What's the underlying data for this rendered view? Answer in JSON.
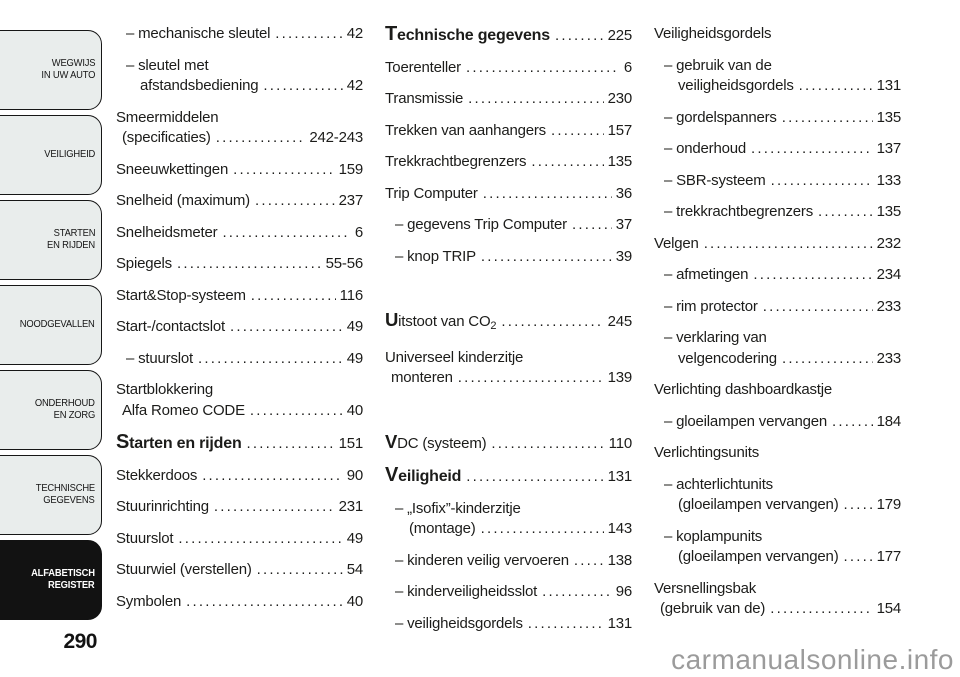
{
  "page": {
    "number": "290",
    "watermark": "carmanualsonline.info"
  },
  "colors": {
    "tab_background": "#e9edec",
    "tab_active_background": "#121212",
    "tab_active_text": "#ffffff",
    "text": "#1c1c1a",
    "watermark": "#9b9b9b"
  },
  "sidebar": {
    "tabs": [
      {
        "id": "wegwijs-in-uw-auto",
        "lines": [
          "WEGWIJS",
          "IN UW AUTO"
        ],
        "active": false
      },
      {
        "id": "veiligheid",
        "lines": [
          "VEILIGHEID"
        ],
        "active": false
      },
      {
        "id": "starten-en-rijden",
        "lines": [
          "STARTEN",
          "EN RIJDEN"
        ],
        "active": false
      },
      {
        "id": "noodgevallen",
        "lines": [
          "NOODGEVALLEN"
        ],
        "active": false
      },
      {
        "id": "onderhoud-en-zorg",
        "lines": [
          "ONDERHOUD",
          "EN ZORG"
        ],
        "active": false
      },
      {
        "id": "technische-gegevens",
        "lines": [
          "TECHNISCHE",
          "GEGEVENS"
        ],
        "active": false
      },
      {
        "id": "alfabetisch-register",
        "lines": [
          "ALFABETISCH",
          "REGISTER"
        ],
        "active": true
      }
    ]
  },
  "index": {
    "columns": [
      {
        "entries": [
          {
            "lines": [
              {
                "text": "– mechanische sleutel",
                "indent": 2,
                "page": "42"
              }
            ]
          },
          {
            "lines": [
              {
                "text": "– sleutel met",
                "indent": 2
              },
              {
                "text": "afstandsbediening",
                "indent": 3,
                "page": "42"
              }
            ]
          },
          {
            "lines": [
              {
                "text": "Smeermiddelen",
                "indent": 0
              },
              {
                "text": "(specificaties)",
                "indent": 1,
                "page": "242-243"
              }
            ]
          },
          {
            "lines": [
              {
                "text": "Sneeuwkettingen",
                "indent": 0,
                "page": "159"
              }
            ]
          },
          {
            "lines": [
              {
                "text": "Snelheid (maximum)",
                "indent": 0,
                "page": "237"
              }
            ]
          },
          {
            "lines": [
              {
                "text": "Snelheidsmeter",
                "indent": 0,
                "page": "6"
              }
            ]
          },
          {
            "lines": [
              {
                "text": "Spiegels",
                "indent": 0,
                "page": "55-56"
              }
            ]
          },
          {
            "lines": [
              {
                "text": "Start&Stop-systeem",
                "indent": 0,
                "page": "116"
              }
            ]
          },
          {
            "lines": [
              {
                "text": "Start-/contactslot",
                "indent": 0,
                "page": "49"
              }
            ]
          },
          {
            "lines": [
              {
                "text": "– stuurslot",
                "indent": 2,
                "page": "49"
              }
            ]
          },
          {
            "lines": [
              {
                "text": "Startblokkering",
                "indent": 0
              },
              {
                "text": "Alfa Romeo CODE",
                "indent": 1,
                "page": "40"
              }
            ]
          },
          {
            "bold": true,
            "lines": [
              {
                "parts": [
                  {
                    "t": "S",
                    "big": true
                  },
                  {
                    "t": "tarten en rijden"
                  }
                ],
                "indent": 0,
                "page": "151"
              }
            ]
          },
          {
            "lines": [
              {
                "text": "Stekkerdoos",
                "indent": 0,
                "page": "90"
              }
            ]
          },
          {
            "lines": [
              {
                "text": "Stuurinrichting",
                "indent": 0,
                "page": "231"
              }
            ]
          },
          {
            "lines": [
              {
                "text": "Stuurslot",
                "indent": 0,
                "page": "49"
              }
            ]
          },
          {
            "lines": [
              {
                "text": "Stuurwiel (verstellen)",
                "indent": 0,
                "page": "54"
              }
            ]
          },
          {
            "lines": [
              {
                "text": "Symbolen",
                "indent": 0,
                "page": "40"
              }
            ]
          }
        ]
      },
      {
        "entries": [
          {
            "bold": true,
            "lines": [
              {
                "parts": [
                  {
                    "t": "T",
                    "big": true
                  },
                  {
                    "t": "echnische gegevens"
                  }
                ],
                "indent": 0,
                "page": "225"
              }
            ]
          },
          {
            "lines": [
              {
                "text": "Toerenteller",
                "indent": 0,
                "page": "6"
              }
            ]
          },
          {
            "lines": [
              {
                "text": "Transmissie",
                "indent": 0,
                "page": "230"
              }
            ]
          },
          {
            "lines": [
              {
                "text": "Trekken van aanhangers",
                "indent": 0,
                "page": "157"
              }
            ]
          },
          {
            "lines": [
              {
                "text": "Trekkrachtbegrenzers",
                "indent": 0,
                "page": "135"
              }
            ]
          },
          {
            "lines": [
              {
                "text": "Trip Computer",
                "indent": 0,
                "page": "36"
              }
            ]
          },
          {
            "lines": [
              {
                "text": "– gegevens Trip Computer",
                "indent": 2,
                "page": "37"
              }
            ]
          },
          {
            "lines": [
              {
                "text": "– knop TRIP",
                "indent": 2,
                "page": "39"
              }
            ]
          },
          {
            "gap_before": true,
            "lines": [
              {
                "parts": [
                  {
                    "t": "U",
                    "big": true
                  },
                  {
                    "t": "itstoot van CO"
                  },
                  {
                    "t": "2",
                    "sub": true
                  }
                ],
                "indent": 0,
                "page": "245"
              }
            ]
          },
          {
            "lines": [
              {
                "text": "Universeel kinderzitje",
                "indent": 0
              },
              {
                "text": "monteren",
                "indent": 1,
                "page": "139"
              }
            ]
          },
          {
            "gap_before": true,
            "lines": [
              {
                "parts": [
                  {
                    "t": "V",
                    "big": true
                  },
                  {
                    "t": "DC (systeem)"
                  }
                ],
                "indent": 0,
                "page": "110"
              }
            ]
          },
          {
            "bold": true,
            "lines": [
              {
                "parts": [
                  {
                    "t": "V",
                    "big": true
                  },
                  {
                    "t": "eiligheid"
                  }
                ],
                "indent": 0,
                "page": "131"
              }
            ]
          },
          {
            "lines": [
              {
                "text": "– „Isofix”-kinderzitje",
                "indent": 2
              },
              {
                "text": "(montage)",
                "indent": 3,
                "page": "143"
              }
            ]
          },
          {
            "lines": [
              {
                "text": "– kinderen veilig vervoeren",
                "indent": 2,
                "page": "138"
              }
            ]
          },
          {
            "lines": [
              {
                "text": "– kinderveiligheidsslot",
                "indent": 2,
                "page": "96"
              }
            ]
          },
          {
            "lines": [
              {
                "text": "– veiligheidsgordels",
                "indent": 2,
                "page": "131"
              }
            ]
          }
        ]
      },
      {
        "entries": [
          {
            "lines": [
              {
                "text": "Veiligheidsgordels",
                "indent": 0
              }
            ]
          },
          {
            "lines": [
              {
                "text": "– gebruik van de",
                "indent": 2
              },
              {
                "text": "veiligheidsgordels",
                "indent": 3,
                "page": "131"
              }
            ]
          },
          {
            "lines": [
              {
                "text": "– gordelspanners",
                "indent": 2,
                "page": "135"
              }
            ]
          },
          {
            "lines": [
              {
                "text": "– onderhoud",
                "indent": 2,
                "page": "137"
              }
            ]
          },
          {
            "lines": [
              {
                "text": "– SBR-systeem",
                "indent": 2,
                "page": "133"
              }
            ]
          },
          {
            "lines": [
              {
                "text": "– trekkrachtbegrenzers",
                "indent": 2,
                "page": "135"
              }
            ]
          },
          {
            "lines": [
              {
                "text": "Velgen",
                "indent": 0,
                "page": "232"
              }
            ]
          },
          {
            "lines": [
              {
                "text": "– afmetingen",
                "indent": 2,
                "page": "234"
              }
            ]
          },
          {
            "lines": [
              {
                "text": "– rim protector",
                "indent": 2,
                "page": "233"
              }
            ]
          },
          {
            "lines": [
              {
                "text": "– verklaring van",
                "indent": 2
              },
              {
                "text": "velgencodering",
                "indent": 3,
                "page": "233"
              }
            ]
          },
          {
            "lines": [
              {
                "text": "Verlichting dashboardkastje",
                "indent": 0
              }
            ]
          },
          {
            "lines": [
              {
                "text": "– gloeilampen vervangen",
                "indent": 2,
                "page": "184"
              }
            ]
          },
          {
            "lines": [
              {
                "text": "Verlichtingsunits",
                "indent": 0
              }
            ]
          },
          {
            "lines": [
              {
                "text": "– achterlichtunits",
                "indent": 2
              },
              {
                "text": "(gloeilampen vervangen)",
                "indent": 3,
                "page": "179"
              }
            ]
          },
          {
            "lines": [
              {
                "text": "– koplampunits",
                "indent": 2
              },
              {
                "text": "(gloeilampen vervangen)",
                "indent": 3,
                "page": "177"
              }
            ]
          },
          {
            "lines": [
              {
                "text": "Versnellingsbak",
                "indent": 0
              },
              {
                "text": "(gebruik van de)",
                "indent": 1,
                "page": "154"
              }
            ]
          }
        ]
      }
    ]
  }
}
